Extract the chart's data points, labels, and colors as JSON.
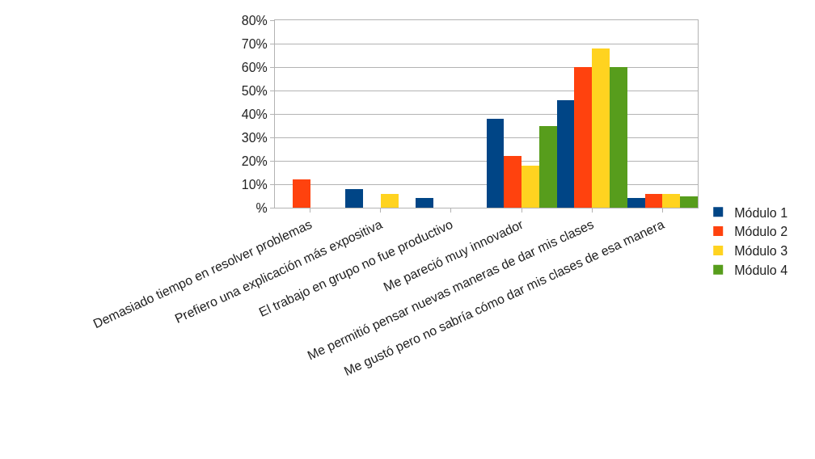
{
  "chart_data": {
    "type": "bar",
    "categories": [
      "Demasiado tiempo en resolver problemas",
      "Prefiero una explicación más expositiva",
      "El trabajo en grupo no fue productivo",
      "Me pareció muy innovador",
      "Me permitió pensar nuevas maneras de dar mis clases",
      "Me gustó pero no sabría cómo dar mis clases de esa manera"
    ],
    "series": [
      {
        "name": "Módulo 1",
        "color": "#004586",
        "values": [
          0,
          8,
          4,
          38,
          46,
          4
        ]
      },
      {
        "name": "Módulo 2",
        "color": "#ff420e",
        "values": [
          12,
          0,
          0,
          22,
          60,
          6
        ]
      },
      {
        "name": "Módulo 3",
        "color": "#ffd320",
        "values": [
          0,
          6,
          0,
          18,
          68,
          6
        ]
      },
      {
        "name": "Módulo 4",
        "color": "#579d1c",
        "values": [
          0,
          0,
          0,
          35,
          60,
          5
        ]
      }
    ],
    "ylim": [
      0,
      80
    ],
    "yticks": [
      {
        "value": 0,
        "label": "%"
      },
      {
        "value": 10,
        "label": "10%"
      },
      {
        "value": 20,
        "label": "20%"
      },
      {
        "value": 30,
        "label": "30%"
      },
      {
        "value": 40,
        "label": "40%"
      },
      {
        "value": 50,
        "label": "50%"
      },
      {
        "value": 60,
        "label": "60%"
      },
      {
        "value": 70,
        "label": "70%"
      },
      {
        "value": 80,
        "label": "80%"
      }
    ],
    "grid": "y",
    "legend": "right"
  }
}
